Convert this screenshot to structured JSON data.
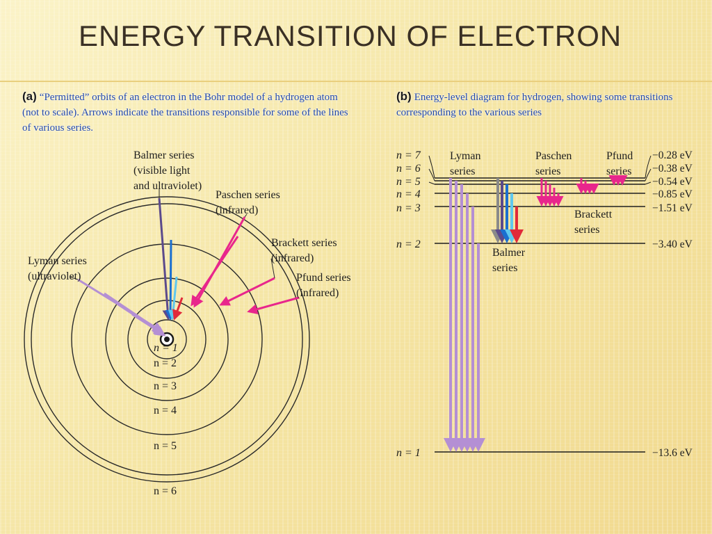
{
  "title": "ENERGY TRANSITION OF ELECTRON",
  "caption_a": {
    "tag": "(a)",
    "text": "“Permitted” orbits of an electron in the Bohr model of a hydrogen atom (not to scale). Arrows indicate the transitions responsible for some of the lines of various series."
  },
  "caption_b": {
    "tag": "(b)",
    "text": "Energy-level diagram for hydrogen, showing some transitions corresponding to the various series"
  },
  "bohr": {
    "orbits": [
      {
        "label": "n = 1"
      },
      {
        "label": "n = 2"
      },
      {
        "label": "n = 3"
      },
      {
        "label": "n = 4"
      },
      {
        "label": "n = 5"
      },
      {
        "label": "n = 6"
      }
    ],
    "series": {
      "balmer": [
        "Balmer series",
        "(visible light",
        "and ultraviolet)"
      ],
      "paschen": [
        "Paschen series",
        "(infrared)"
      ],
      "brackett": [
        "Brackett series",
        "(infrared)"
      ],
      "pfund": [
        "Pfund series",
        "(infrared)"
      ],
      "lyman": [
        "Lyman series",
        "(ultraviolet)"
      ]
    }
  },
  "levels": {
    "items": [
      {
        "n": "n = 7",
        "energy": "−0.28 eV"
      },
      {
        "n": "n = 6",
        "energy": "−0.38 eV"
      },
      {
        "n": "n = 5",
        "energy": "−0.54 eV"
      },
      {
        "n": "n = 4",
        "energy": "−0.85 eV"
      },
      {
        "n": "n = 3",
        "energy": "−1.51 eV"
      },
      {
        "n": "n = 2",
        "energy": "−3.40 eV"
      },
      {
        "n": "n = 1",
        "energy": "−13.6 eV"
      }
    ],
    "series": {
      "lyman": [
        "Lyman",
        "series"
      ],
      "paschen": [
        "Paschen",
        "series"
      ],
      "pfund": [
        "Pfund",
        "series"
      ],
      "brackett": [
        "Brackett",
        "series"
      ],
      "balmer": [
        "Balmer",
        "series"
      ]
    }
  },
  "colors": {
    "lyman": "#b48fd4",
    "balmer_violet": "#5b4a8c",
    "balmer_blue": "#1b6fd0",
    "balmer_cyan": "#5fc8ee",
    "balmer_red": "#e02a3a",
    "infrared": "#e8268c",
    "line": "#1e1e1e"
  }
}
